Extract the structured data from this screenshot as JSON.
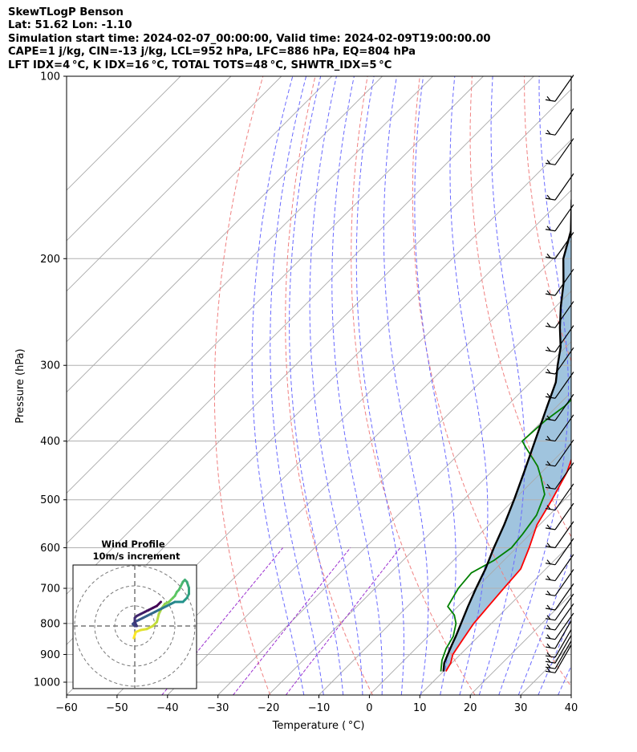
{
  "header": {
    "title": "SkewTLogP Benson",
    "location": "Lat: 51.62   Lon: -1.10",
    "times": "Simulation start time: 2024-02-07_00:00:00, Valid time: 2024-02-09T19:00:00.00",
    "indices1": "CAPE=1 j/kg, CIN=-13 j/kg, LCL=952 hPa, LFC=886 hPa, EQ=804 hPa",
    "indices2": "LFT IDX=4 °C, K IDX=16 °C, TOTAL TOTS=48 °C, SHWTR_IDX=5 °C"
  },
  "chart_data": {
    "type": "line",
    "subtype": "skew-T log-P diagram",
    "xlabel": "Temperature ( °C)",
    "ylabel": "Pressure (hPa)",
    "xlim": [
      -60,
      40
    ],
    "ylim": [
      1050,
      100
    ],
    "y_scale": "log",
    "x_ticks": [
      "−60",
      "−50",
      "−40",
      "−30",
      "−20",
      "−10",
      "0",
      "10",
      "20",
      "30",
      "40"
    ],
    "y_ticks": [
      "100",
      "200",
      "300",
      "400",
      "500",
      "600",
      "700",
      "800",
      "900",
      "1000"
    ],
    "grid": true,
    "colors": {
      "temperature": "#ff0000",
      "dewpoint": "#008000",
      "parcel": "#000000",
      "cape_fill": "#a0c4de",
      "dry_adiabat": "#f08080",
      "moist_adiabat": "#6a6aff",
      "mixing_ratio": "#9b30d0",
      "isotherm": "#a9a9a9"
    },
    "series": [
      {
        "kind": "temperature",
        "points": [
          [
            10.5,
            960
          ],
          [
            9.8,
            930
          ],
          [
            8.5,
            900
          ],
          [
            7.5,
            850
          ],
          [
            6.5,
            800
          ],
          [
            6,
            750
          ],
          [
            5.5,
            700
          ],
          [
            5,
            650
          ],
          [
            2.5,
            600
          ],
          [
            -0.5,
            550
          ],
          [
            -2.5,
            500
          ],
          [
            -5,
            450
          ],
          [
            -9,
            400
          ],
          [
            -13,
            350
          ],
          [
            -17,
            320
          ],
          [
            -20,
            300
          ],
          [
            -20.5,
            290
          ],
          [
            -19,
            275
          ],
          [
            -16.5,
            260
          ],
          [
            -13,
            240
          ],
          [
            -11,
            230
          ],
          [
            -8,
            215
          ],
          [
            -5,
            200
          ],
          [
            -2,
            190
          ],
          [
            1,
            180
          ],
          [
            3,
            165
          ],
          [
            4,
            150
          ],
          [
            5,
            140
          ],
          [
            6,
            132
          ],
          [
            8,
            120
          ],
          [
            11,
            110
          ],
          [
            13.5,
            100
          ]
        ]
      },
      {
        "kind": "dewpoint",
        "points": [
          [
            9.5,
            960
          ],
          [
            7.5,
            920
          ],
          [
            6,
            880
          ],
          [
            5,
            840
          ],
          [
            3,
            800
          ],
          [
            1,
            775
          ],
          [
            -2,
            750
          ],
          [
            -3.5,
            700
          ],
          [
            -4,
            660
          ],
          [
            -2,
            630
          ],
          [
            -1,
            600
          ],
          [
            -1.5,
            570
          ],
          [
            -2.5,
            530
          ],
          [
            -5,
            490
          ],
          [
            -9,
            460
          ],
          [
            -12,
            440
          ],
          [
            -18,
            410
          ],
          [
            -20,
            400
          ],
          [
            -19.5,
            370
          ],
          [
            -18.5,
            350
          ],
          [
            -18.5,
            320
          ],
          [
            -18,
            305
          ],
          [
            -20,
            295
          ],
          [
            -22,
            280
          ],
          [
            -24,
            265
          ],
          [
            -26,
            245
          ],
          [
            -27,
            230
          ],
          [
            -27.5,
            210
          ],
          [
            -28,
            200
          ],
          [
            -32,
            190
          ],
          [
            -27,
            175
          ],
          [
            -21,
            160
          ],
          [
            -16,
            148
          ],
          [
            -13,
            140
          ],
          [
            -7,
            128
          ],
          [
            -2,
            118
          ],
          [
            2,
            110
          ],
          [
            6,
            100
          ]
        ]
      },
      {
        "kind": "parcel",
        "points": [
          [
            10,
            960
          ],
          [
            8.5,
            930
          ],
          [
            7.5,
            900
          ],
          [
            6.5,
            870
          ],
          [
            5.5,
            840
          ],
          [
            4,
            800
          ],
          [
            2,
            750
          ],
          [
            0,
            700
          ],
          [
            -2,
            650
          ],
          [
            -4.5,
            600
          ],
          [
            -7,
            550
          ],
          [
            -10,
            500
          ],
          [
            -13.5,
            450
          ],
          [
            -17.5,
            400
          ],
          [
            -22,
            350
          ],
          [
            -25,
            320
          ],
          [
            -28,
            300
          ],
          [
            -31,
            280
          ],
          [
            -35,
            260
          ],
          [
            -39,
            240
          ],
          [
            -43,
            220
          ],
          [
            -48,
            200
          ],
          [
            -52,
            180
          ],
          [
            -58,
            160
          ],
          [
            -63,
            140
          ],
          [
            -69,
            120
          ],
          [
            -74,
            100
          ]
        ]
      }
    ],
    "wind_barb_pressures": [
      965,
      950,
      930,
      910,
      880,
      850,
      820,
      790,
      760,
      720,
      680,
      640,
      600,
      560,
      520,
      480,
      440,
      400,
      370,
      340,
      310,
      285,
      260,
      230,
      200,
      180,
      160,
      140,
      125,
      110
    ],
    "hodograph": {
      "title": "Wind Profile",
      "subtitle": "10m/s increment",
      "rings_ms": [
        10,
        20,
        30
      ],
      "points": [
        [
          -0.5,
          -6
        ],
        [
          0.5,
          -3
        ],
        [
          3,
          -2
        ],
        [
          6,
          -1.5
        ],
        [
          9,
          0
        ],
        [
          11,
          2
        ],
        [
          12,
          6
        ],
        [
          13.5,
          9
        ],
        [
          15,
          11
        ],
        [
          17,
          12
        ],
        [
          18,
          13
        ],
        [
          19,
          14
        ],
        [
          20,
          15
        ],
        [
          21,
          17
        ],
        [
          22,
          18
        ],
        [
          23,
          20
        ],
        [
          24,
          22
        ],
        [
          25,
          23
        ],
        [
          26,
          22
        ],
        [
          27,
          19
        ],
        [
          27,
          16
        ],
        [
          26,
          14
        ],
        [
          25,
          13
        ],
        [
          24,
          12
        ],
        [
          22,
          12
        ],
        [
          20,
          12
        ],
        [
          18,
          11
        ],
        [
          16,
          10
        ],
        [
          14,
          9
        ],
        [
          12,
          8
        ],
        [
          10,
          7
        ],
        [
          8,
          6
        ],
        [
          6,
          5
        ],
        [
          4,
          4
        ],
        [
          2,
          3
        ],
        [
          0,
          2
        ],
        [
          -1,
          1
        ],
        [
          0,
          0
        ],
        [
          1,
          0
        ],
        [
          0,
          2
        ],
        [
          0,
          4
        ],
        [
          1,
          5
        ],
        [
          3,
          6
        ],
        [
          5,
          7
        ],
        [
          7,
          8
        ],
        [
          9,
          9
        ],
        [
          11,
          10
        ],
        [
          13,
          12
        ]
      ]
    }
  }
}
